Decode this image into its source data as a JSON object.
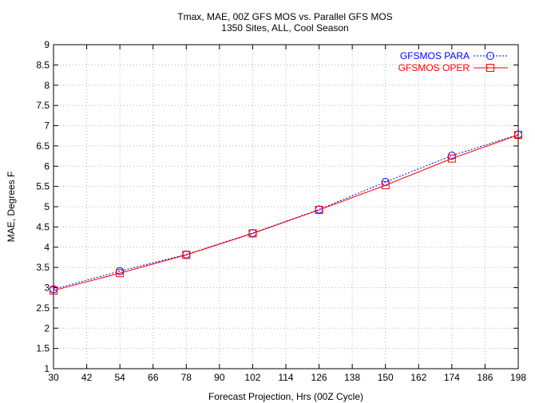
{
  "chart_data": {
    "type": "line",
    "title": "Tmax, MAE, 00Z GFS MOS vs. Parallel GFS MOS",
    "subtitle": "1350 Sites, ALL, Cool Season",
    "xlabel": "Forecast Projection, Hrs (00Z Cycle)",
    "ylabel": "MAE, Degrees F",
    "xlim": [
      30,
      198
    ],
    "ylim": [
      1,
      9
    ],
    "xticks": [
      "30",
      "42",
      "54",
      "66",
      "78",
      "90",
      "102",
      "114",
      "126",
      "138",
      "150",
      "162",
      "174",
      "186",
      "198"
    ],
    "yticks": [
      "1",
      "1.5",
      "2",
      "2.5",
      "3",
      "3.5",
      "4",
      "4.5",
      "5",
      "5.5",
      "6",
      "6.5",
      "7",
      "7.5",
      "8",
      "8.5",
      "9"
    ],
    "grid": true,
    "legend_position": "top-right",
    "x": [
      30,
      54,
      78,
      102,
      126,
      150,
      174,
      198
    ],
    "series": [
      {
        "name": "GFSMOS PARA",
        "color": "#0000ff",
        "marker": "circle",
        "line_style": "dotted",
        "values": [
          2.96,
          3.41,
          3.82,
          4.35,
          4.93,
          5.61,
          6.26,
          6.78
        ]
      },
      {
        "name": "GFSMOS OPER",
        "color": "#ff0000",
        "marker": "square",
        "line_style": "solid",
        "values": [
          2.93,
          3.36,
          3.81,
          4.34,
          4.92,
          5.53,
          6.19,
          6.77
        ]
      }
    ]
  }
}
